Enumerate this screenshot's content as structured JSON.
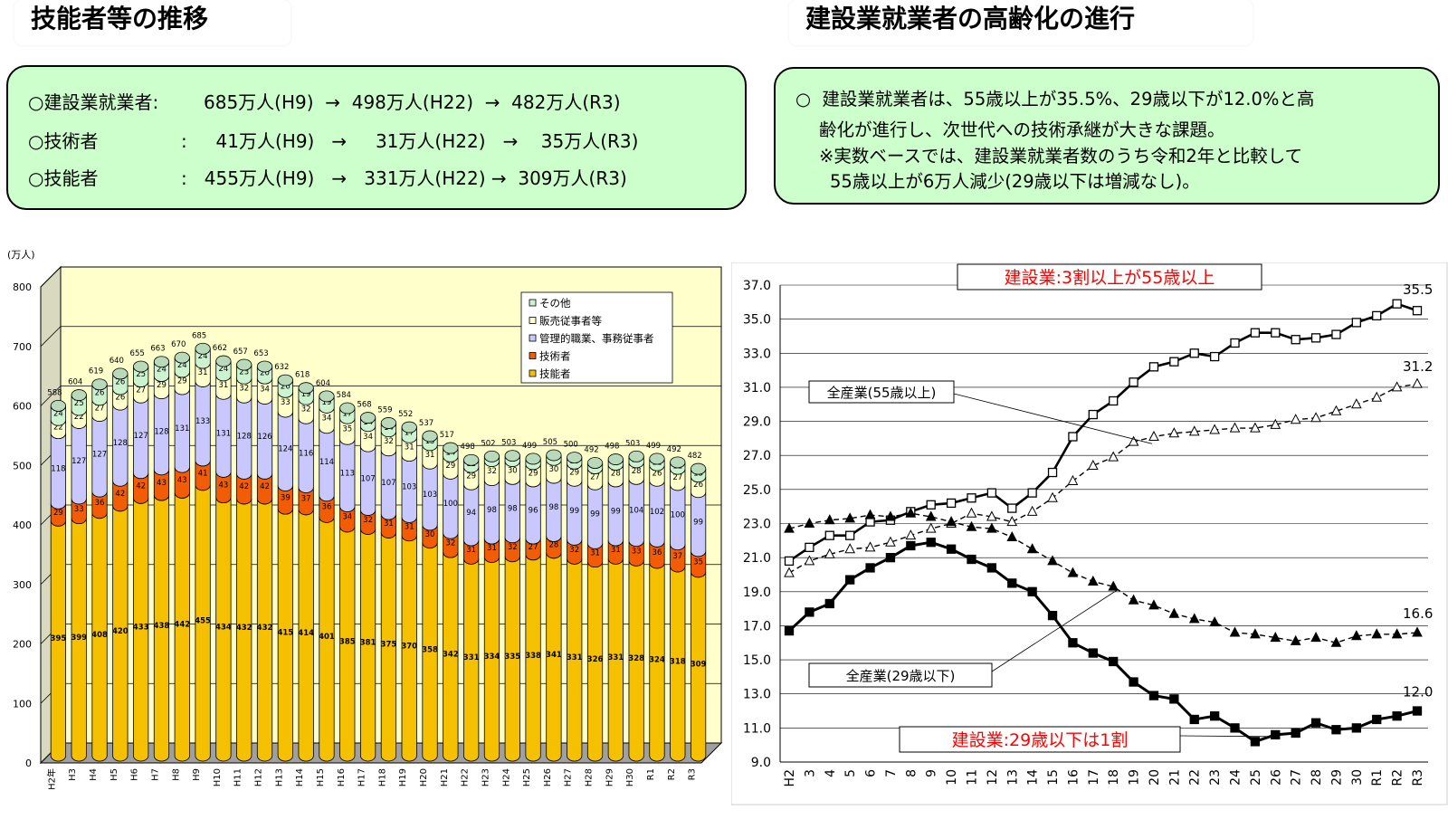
{
  "headers": {
    "left": "技能者等の推移",
    "right": "建設業就業者の高齢化の進行"
  },
  "summary_left": {
    "rows": [
      {
        "label": "○建設業就業者:",
        "text": "685万人(H9)  →  498万人(H22)  →  482万人(R3)"
      },
      {
        "label": "○技術者",
        "text": ":     41万人(H9)   →     31万人(H22)   →    35万人(R3)"
      },
      {
        "label": "○技能者",
        "text": ":   455万人(H9)   →   331万人(H22) →  309万人(R3)"
      }
    ]
  },
  "summary_right": {
    "lines": [
      "○  建設業就業者は、55歳以上が35.5%、29歳以下が12.0%と高",
      "齢化が進行し、次世代への技術承継が大きな課題。",
      "※実数ベースでは、建設業就業者数のうち令和2年と比較して",
      "55歳以上が6万人減少(29歳以下は増減なし)。"
    ]
  },
  "chart_data": [
    {
      "type": "bar",
      "stacked": true,
      "unit_label": "(万人)",
      "ylim": [
        0,
        800
      ],
      "yticks": [
        "0",
        "100",
        "200",
        "300",
        "400",
        "500",
        "600",
        "700",
        "800"
      ],
      "categories": [
        "H2年",
        "H3",
        "H4",
        "H5",
        "H6",
        "H7",
        "H8",
        "H9",
        "H10",
        "H11",
        "H12",
        "H13",
        "H14",
        "H15",
        "H16",
        "H17",
        "H18",
        "H19",
        "H20",
        "H21",
        "H22",
        "H23",
        "H24",
        "H25",
        "H26",
        "H27",
        "H28",
        "H29",
        "H30",
        "R1",
        "R2",
        "R3"
      ],
      "totals": [
        588,
        604,
        619,
        640,
        655,
        663,
        670,
        685,
        662,
        657,
        653,
        632,
        618,
        604,
        584,
        568,
        559,
        552,
        537,
        517,
        498,
        502,
        503,
        499,
        505,
        500,
        492,
        498,
        503,
        499,
        492,
        482
      ],
      "series": [
        {
          "name": "技能者",
          "color": "#f5c000",
          "values": [
            395,
            399,
            408,
            420,
            433,
            438,
            442,
            455,
            434,
            432,
            432,
            415,
            414,
            401,
            385,
            381,
            375,
            370,
            358,
            342,
            331,
            334,
            335,
            338,
            341,
            331,
            326,
            331,
            328,
            324,
            318,
            309
          ]
        },
        {
          "name": "技術者",
          "color": "#f25c05",
          "values": [
            29,
            33,
            36,
            42,
            42,
            43,
            43,
            41,
            43,
            42,
            42,
            39,
            37,
            36,
            34,
            32,
            31,
            31,
            30,
            32,
            31,
            31,
            32,
            27,
            28,
            32,
            31,
            31,
            33,
            36,
            37,
            35
          ]
        },
        {
          "name": "管理的職業、事務従事者",
          "color": "#c8c8ff",
          "values": [
            118,
            127,
            127,
            128,
            127,
            128,
            131,
            133,
            131,
            128,
            126,
            124,
            116,
            114,
            113,
            107,
            107,
            103,
            103,
            100,
            94,
            98,
            98,
            96,
            98,
            99,
            99,
            99,
            104,
            102,
            100,
            99
          ]
        },
        {
          "name": "販売従事者等",
          "color": "#ffffcc",
          "values": [
            22,
            22,
            27,
            26,
            27,
            29,
            29,
            31,
            31,
            32,
            34,
            33,
            32,
            34,
            35,
            34,
            32,
            31,
            31,
            29,
            29,
            32,
            30,
            29,
            30,
            29,
            27,
            28,
            28,
            26,
            27,
            26
          ]
        },
        {
          "name": "その他",
          "color": "#ccf2d0",
          "values": [
            24,
            25,
            26,
            26,
            25,
            24,
            24,
            24,
            24,
            23,
            20,
            20,
            19,
            19,
            17,
            14,
            14,
            17,
            15,
            14,
            12,
            8,
            9,
            9,
            8,
            10,
            9,
            9,
            10,
            11,
            11,
            13
          ]
        }
      ],
      "legend_order": [
        "その他",
        "販売従事者等",
        "管理的職業、事務従事者",
        "技術者",
        "技能者"
      ],
      "legend": "top-right"
    },
    {
      "type": "line",
      "ylim": [
        9.0,
        37.0
      ],
      "yticks": [
        "9.0",
        "11.0",
        "13.0",
        "15.0",
        "17.0",
        "19.0",
        "21.0",
        "23.0",
        "25.0",
        "27.0",
        "29.0",
        "31.0",
        "33.0",
        "35.0",
        "37.0"
      ],
      "x": [
        "H2",
        "3",
        "4",
        "5",
        "6",
        "7",
        "8",
        "9",
        "10",
        "11",
        "12",
        "13",
        "14",
        "15",
        "16",
        "17",
        "18",
        "19",
        "20",
        "21",
        "22",
        "23",
        "24",
        "25",
        "26",
        "27",
        "28",
        "29",
        "30",
        "R1",
        "R2",
        "R3"
      ],
      "series": [
        {
          "name": "建設業(55歳以上)",
          "style": "solid-open-square",
          "values": [
            20.8,
            21.6,
            22.3,
            22.3,
            23.1,
            23.2,
            23.7,
            24.1,
            24.2,
            24.5,
            24.8,
            23.9,
            24.8,
            26.0,
            28.1,
            29.4,
            30.2,
            31.3,
            32.2,
            32.5,
            33.0,
            32.8,
            33.6,
            34.2,
            34.2,
            33.8,
            33.9,
            34.1,
            34.8,
            35.2,
            35.9,
            35.5
          ]
        },
        {
          "name": "全産業(55歳以上)",
          "style": "dashed-open-triangle",
          "values": [
            20.1,
            20.8,
            21.2,
            21.5,
            21.6,
            21.9,
            22.3,
            22.7,
            23.0,
            23.6,
            23.4,
            23.1,
            23.7,
            24.5,
            25.5,
            26.4,
            26.9,
            27.8,
            28.1,
            28.3,
            28.4,
            28.5,
            28.6,
            28.6,
            28.8,
            29.1,
            29.2,
            29.6,
            30.0,
            30.4,
            31.0,
            31.2
          ]
        },
        {
          "name": "全産業(29歳以下)",
          "style": "dashed-filled-triangle",
          "values": [
            22.7,
            23.0,
            23.2,
            23.3,
            23.5,
            23.4,
            23.6,
            23.4,
            23.1,
            22.8,
            22.7,
            22.2,
            21.5,
            20.8,
            20.1,
            19.6,
            19.3,
            18.5,
            18.2,
            17.7,
            17.4,
            17.2,
            16.6,
            16.5,
            16.3,
            16.1,
            16.3,
            16.0,
            16.4,
            16.5,
            16.5,
            16.6
          ]
        },
        {
          "name": "建設業(29歳以下)",
          "style": "solid-filled-square",
          "values": [
            16.7,
            17.8,
            18.3,
            19.7,
            20.4,
            21.0,
            21.7,
            21.9,
            21.5,
            20.9,
            20.4,
            19.5,
            19.0,
            17.6,
            16.0,
            15.4,
            14.9,
            13.7,
            12.9,
            12.7,
            11.5,
            11.7,
            11.0,
            10.2,
            10.6,
            10.7,
            11.3,
            10.9,
            11.0,
            11.5,
            11.7,
            12.0
          ]
        }
      ],
      "end_labels": [
        "35.5",
        "31.2",
        "16.6",
        "12.0"
      ],
      "annotations": {
        "top_callout": "建設業:3割以上が55歳以上",
        "bottom_callout": "建設業:29歳以下は1割",
        "label_all_55": "全産業(55歳以上)",
        "label_all_29": "全産業(29歳以下)"
      }
    }
  ]
}
